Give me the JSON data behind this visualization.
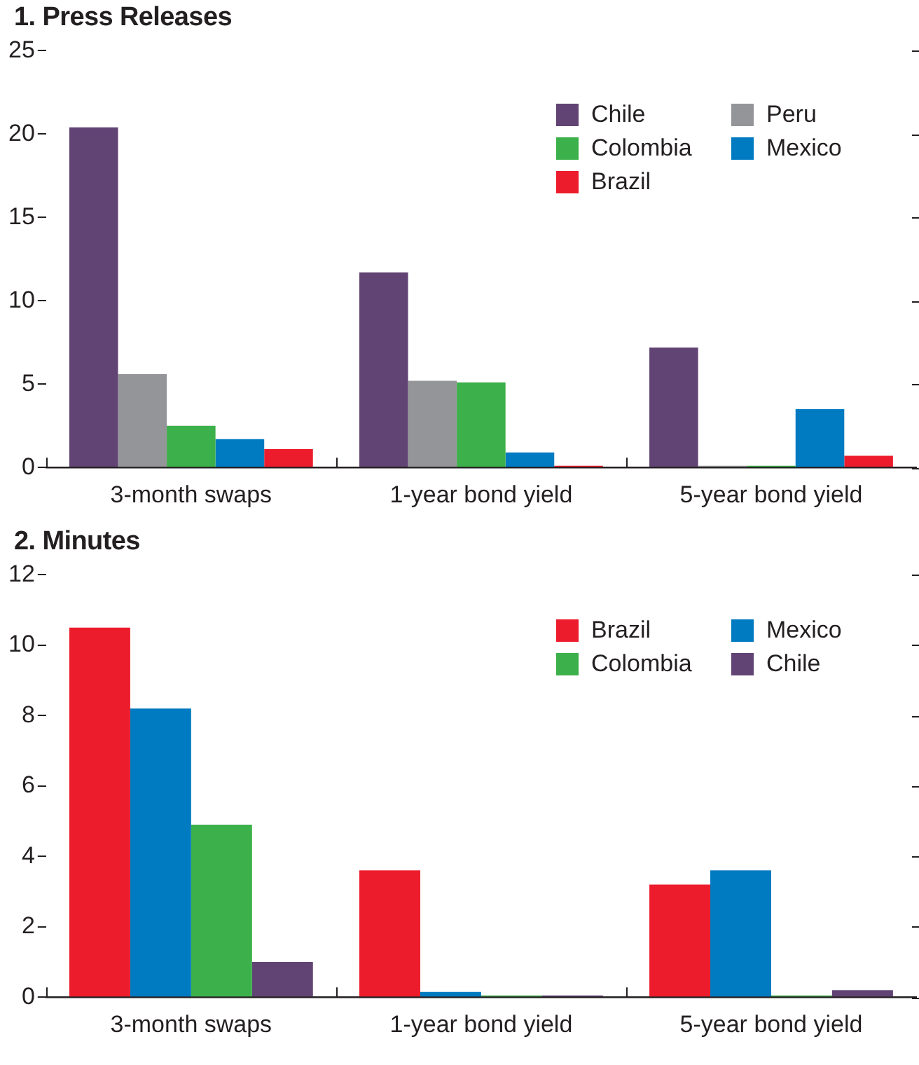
{
  "chart_data": [
    {
      "type": "bar",
      "title": "1. Press Releases",
      "categories": [
        "3-month swaps",
        "1-year bond yield",
        "5-year bond yield"
      ],
      "ylim": [
        0,
        25
      ],
      "yticks": [
        0,
        5,
        10,
        15,
        20,
        25
      ],
      "grid": false,
      "legend": "top right",
      "series": [
        {
          "name": "Chile",
          "color": "#614374",
          "values": [
            20.4,
            11.7,
            7.2
          ]
        },
        {
          "name": "Peru",
          "color": "#939598",
          "values": [
            5.6,
            5.2,
            0.1
          ]
        },
        {
          "name": "Colombia",
          "color": "#3cb04a",
          "values": [
            2.5,
            5.1,
            0.1
          ]
        },
        {
          "name": "Mexico",
          "color": "#007ac0",
          "values": [
            1.7,
            0.9,
            3.5
          ]
        },
        {
          "name": "Brazil",
          "color": "#ec1c2c",
          "values": [
            1.1,
            0.1,
            0.7
          ]
        }
      ]
    },
    {
      "type": "bar",
      "title": "2. Minutes",
      "categories": [
        "3-month swaps",
        "1-year bond yield",
        "5-year bond yield"
      ],
      "ylim": [
        0,
        12
      ],
      "yticks": [
        0,
        2,
        4,
        6,
        8,
        10,
        12
      ],
      "grid": false,
      "legend": "top right",
      "series": [
        {
          "name": "Brazil",
          "color": "#ec1c2c",
          "values": [
            10.5,
            3.6,
            3.2
          ]
        },
        {
          "name": "Mexico",
          "color": "#007ac0",
          "values": [
            8.2,
            0.15,
            3.6
          ]
        },
        {
          "name": "Colombia",
          "color": "#3cb04a",
          "values": [
            4.9,
            0.05,
            0.05
          ]
        },
        {
          "name": "Chile",
          "color": "#614374",
          "values": [
            1.0,
            0.05,
            0.2
          ]
        }
      ]
    }
  ]
}
